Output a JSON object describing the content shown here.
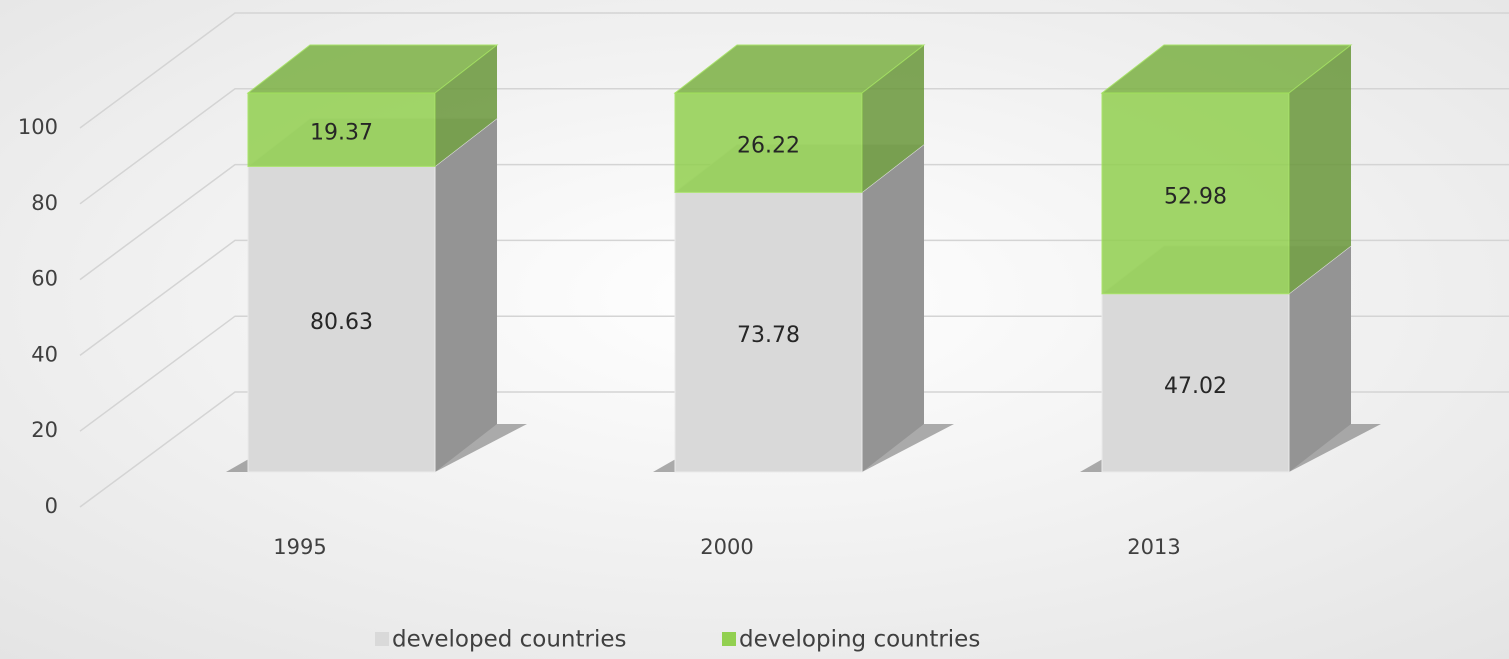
{
  "chart_data": {
    "type": "bar3d_stacked",
    "categories": [
      "1995",
      "2000",
      "2013"
    ],
    "series": [
      {
        "name": "developed countries",
        "color": "#d9d9d9",
        "values": [
          80.63,
          73.78,
          47.02
        ]
      },
      {
        "name": "developing countries",
        "color": "#92d050",
        "values": [
          19.37,
          26.22,
          52.98
        ]
      }
    ],
    "ylim": [
      0,
      100
    ],
    "yticks": [
      0,
      20,
      40,
      60,
      80,
      100
    ],
    "grid": true
  }
}
